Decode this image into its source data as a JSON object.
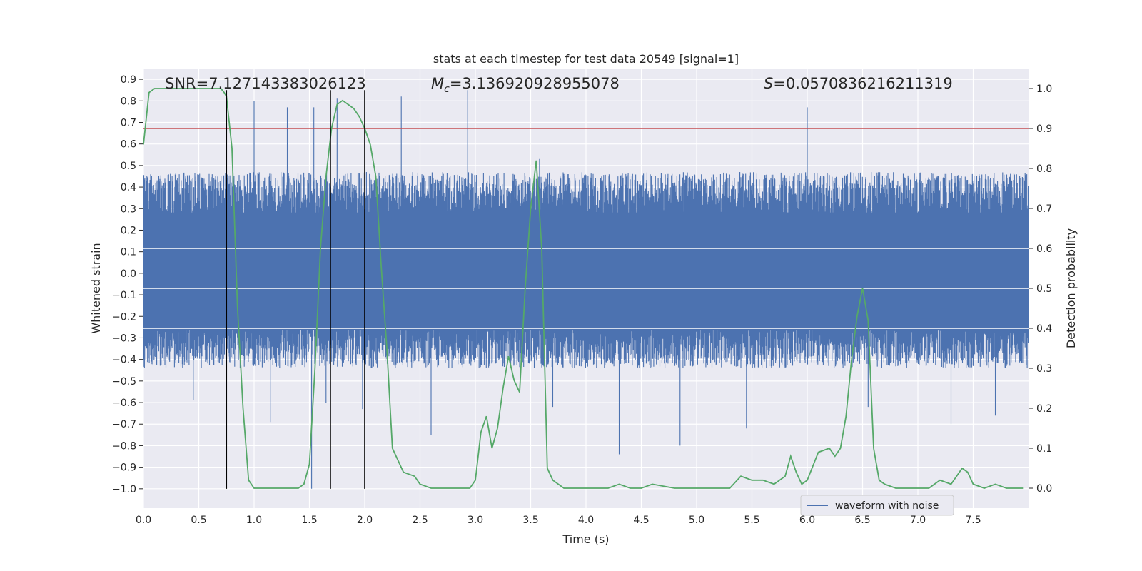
{
  "chart_data": {
    "type": "line",
    "title": "stats at each timestep for test data 20549 [signal=1]",
    "xlabel": "Time (s)",
    "ylabel": "Whitened strain",
    "y2label": "Detection probability",
    "xlim": [
      0.0,
      8.0
    ],
    "ylim": [
      -1.09,
      0.95
    ],
    "y2lim": [
      -0.05,
      1.05
    ],
    "xticks": [
      0.0,
      0.5,
      1.0,
      1.5,
      2.0,
      2.5,
      3.0,
      3.5,
      4.0,
      4.5,
      5.0,
      5.5,
      6.0,
      6.5,
      7.0,
      7.5
    ],
    "yticks": [
      -1.0,
      -0.9,
      -0.8,
      -0.7,
      -0.6,
      -0.5,
      -0.4,
      -0.3,
      -0.2,
      -0.1,
      0.0,
      0.1,
      0.2,
      0.3,
      0.4,
      0.5,
      0.6,
      0.7,
      0.8,
      0.9
    ],
    "y2ticks": [
      0.0,
      0.1,
      0.2,
      0.3,
      0.4,
      0.5,
      0.6,
      0.7,
      0.8,
      0.9,
      1.0
    ],
    "grid": true,
    "legend_position": "lower-right",
    "annotations": {
      "snr": "SNR=7.127143383026123",
      "mc_symbol": "M",
      "mc_sub": "c",
      "mc_value": "=3.136920928955078",
      "s_symbol": "S",
      "s_value": "=0.0570836216211319"
    },
    "threshold": {
      "value": 0.9,
      "axis": "right",
      "color": "#c44e52"
    },
    "vertical_lines": {
      "x": [
        0.75,
        1.69,
        2.0
      ],
      "ymin": -1.0,
      "ymax": 0.85,
      "color": "#000000"
    },
    "series": [
      {
        "name": "waveform with noise",
        "axis": "left",
        "color": "#4c72b0",
        "style": "dense-noise",
        "x_range": [
          0.0,
          8.0
        ],
        "typical_min": -0.44,
        "typical_max": 0.47,
        "spikes": [
          {
            "x": 0.3,
            "y": 0.1
          },
          {
            "x": 1.0,
            "y": 0.8
          },
          {
            "x": 1.3,
            "y": 0.77
          },
          {
            "x": 1.54,
            "y": 0.77
          },
          {
            "x": 1.75,
            "y": 0.81
          },
          {
            "x": 2.33,
            "y": 0.82
          },
          {
            "x": 2.93,
            "y": 0.85
          },
          {
            "x": 3.58,
            "y": 0.53
          },
          {
            "x": 6.0,
            "y": 0.77
          },
          {
            "x": 1.15,
            "y": -0.69
          },
          {
            "x": 1.52,
            "y": -1.0
          },
          {
            "x": 1.65,
            "y": -0.6
          },
          {
            "x": 1.98,
            "y": -0.63
          },
          {
            "x": 2.6,
            "y": -0.75
          },
          {
            "x": 3.7,
            "y": -0.62
          },
          {
            "x": 4.3,
            "y": -0.84
          },
          {
            "x": 4.85,
            "y": -0.8
          },
          {
            "x": 5.45,
            "y": -0.72
          },
          {
            "x": 7.3,
            "y": -0.7
          },
          {
            "x": 7.7,
            "y": -0.66
          },
          {
            "x": 0.45,
            "y": -0.59
          },
          {
            "x": 6.55,
            "y": -0.62
          }
        ]
      },
      {
        "name": "",
        "axis": "right",
        "color": "#55a868",
        "x": [
          0.0,
          0.05,
          0.1,
          0.2,
          0.3,
          0.4,
          0.5,
          0.6,
          0.7,
          0.73,
          0.75,
          0.8,
          0.85,
          0.9,
          0.95,
          1.0,
          1.1,
          1.2,
          1.3,
          1.4,
          1.45,
          1.5,
          1.55,
          1.6,
          1.65,
          1.7,
          1.75,
          1.8,
          1.85,
          1.9,
          1.95,
          2.0,
          2.05,
          2.1,
          2.15,
          2.2,
          2.25,
          2.35,
          2.45,
          2.5,
          2.6,
          2.7,
          2.8,
          2.9,
          2.95,
          3.0,
          3.05,
          3.1,
          3.15,
          3.2,
          3.25,
          3.3,
          3.35,
          3.4,
          3.45,
          3.5,
          3.55,
          3.6,
          3.65,
          3.7,
          3.8,
          3.9,
          4.0,
          4.2,
          4.3,
          4.4,
          4.5,
          4.6,
          4.8,
          5.0,
          5.2,
          5.3,
          5.4,
          5.5,
          5.6,
          5.7,
          5.8,
          5.85,
          5.9,
          5.95,
          6.0,
          6.1,
          6.2,
          6.25,
          6.3,
          6.35,
          6.4,
          6.45,
          6.5,
          6.55,
          6.6,
          6.65,
          6.7,
          6.8,
          7.0,
          7.1,
          7.2,
          7.3,
          7.4,
          7.45,
          7.5,
          7.6,
          7.7,
          7.8,
          7.95
        ],
        "values": [
          0.86,
          0.99,
          1.0,
          1.0,
          1.0,
          1.0,
          1.0,
          1.0,
          1.0,
          0.99,
          0.98,
          0.85,
          0.45,
          0.2,
          0.02,
          0.0,
          0.0,
          0.0,
          0.0,
          0.0,
          0.01,
          0.06,
          0.3,
          0.6,
          0.78,
          0.9,
          0.96,
          0.97,
          0.96,
          0.95,
          0.93,
          0.9,
          0.86,
          0.78,
          0.55,
          0.35,
          0.1,
          0.04,
          0.03,
          0.01,
          0.0,
          0.0,
          0.0,
          0.0,
          0.0,
          0.02,
          0.14,
          0.18,
          0.1,
          0.15,
          0.25,
          0.33,
          0.27,
          0.24,
          0.5,
          0.7,
          0.82,
          0.6,
          0.05,
          0.02,
          0.0,
          0.0,
          0.0,
          0.0,
          0.01,
          0.0,
          0.0,
          0.01,
          0.0,
          0.0,
          0.0,
          0.0,
          0.03,
          0.02,
          0.02,
          0.01,
          0.03,
          0.08,
          0.04,
          0.01,
          0.02,
          0.09,
          0.1,
          0.08,
          0.1,
          0.18,
          0.32,
          0.43,
          0.5,
          0.42,
          0.1,
          0.02,
          0.01,
          0.0,
          0.0,
          0.0,
          0.02,
          0.01,
          0.05,
          0.04,
          0.01,
          0.0,
          0.01,
          0.0,
          0.0
        ]
      }
    ]
  }
}
